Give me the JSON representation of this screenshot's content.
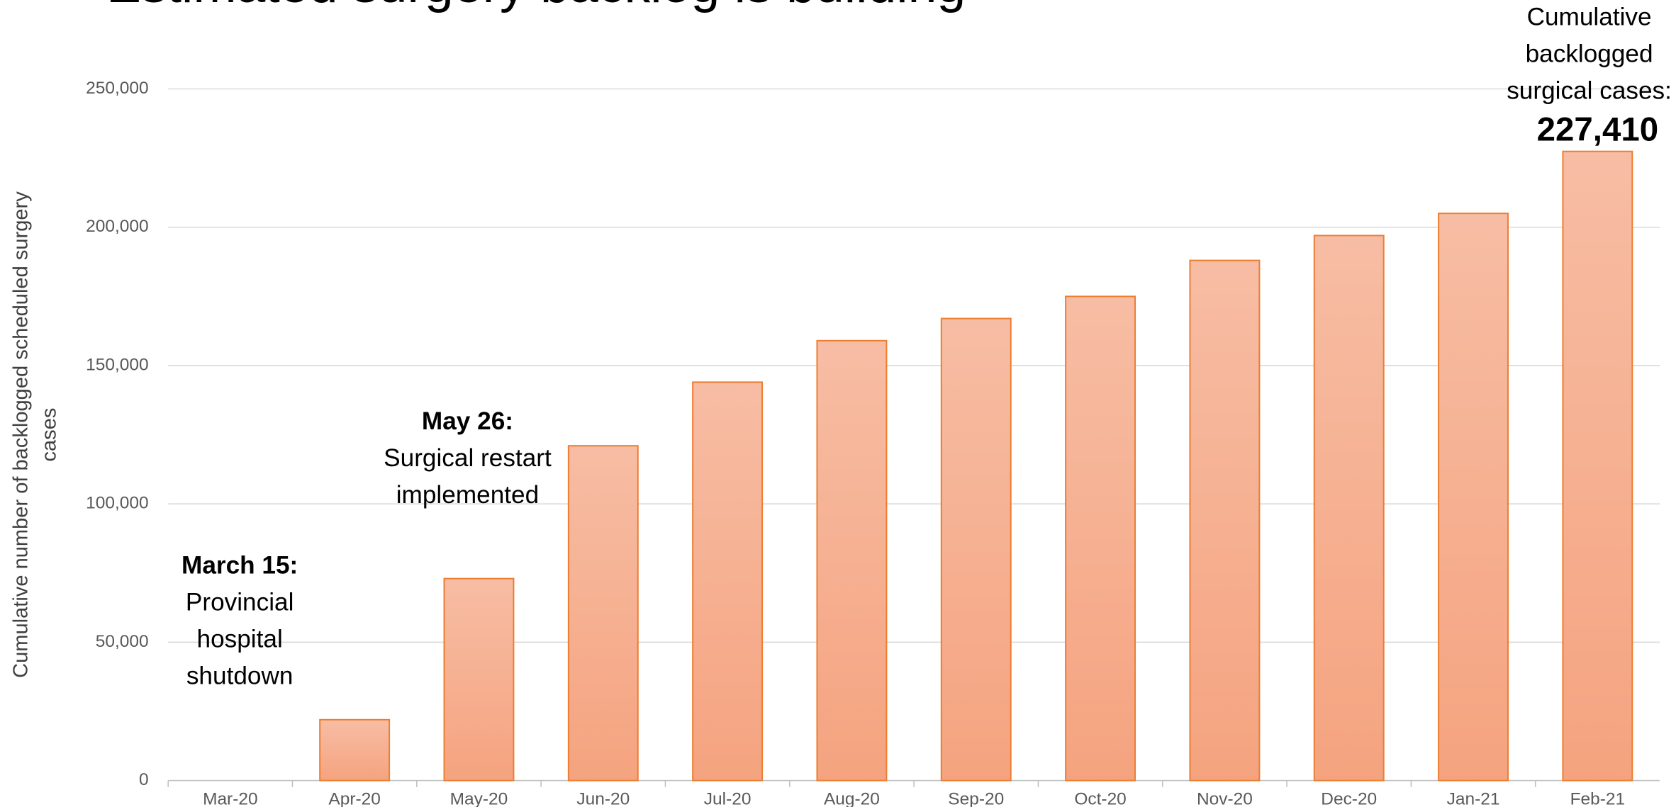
{
  "chart_data": {
    "type": "bar",
    "title": "Estimated surgery backlog is building",
    "ylabel": [
      "Cumulative number of backlogged scheduled surgery",
      "cases"
    ],
    "categories": [
      "Mar-20",
      "Apr-20",
      "May-20",
      "Jun-20",
      "Jul-20",
      "Aug-20",
      "Sep-20",
      "Oct-20",
      "Nov-20",
      "Dec-20",
      "Jan-21",
      "Feb-21"
    ],
    "values": [
      0,
      22000,
      73000,
      121000,
      144000,
      159000,
      167000,
      175000,
      188000,
      197000,
      205000,
      227410
    ],
    "value_labels": [
      null,
      null,
      null,
      null,
      null,
      null,
      null,
      null,
      null,
      null,
      null,
      "227,410"
    ],
    "color": "#f5a987",
    "edge_color": "#ed7d31",
    "ylim": [
      0,
      250000
    ],
    "yticks": [
      0,
      {
        "value": 50000,
        "label": "50,000"
      },
      {
        "value": 100000,
        "label": "100,000"
      },
      {
        "value": 150000,
        "label": "150,000"
      },
      {
        "value": 200000,
        "label": "200,000"
      },
      {
        "value": 250000,
        "label": "250,000"
      }
    ],
    "grid": true,
    "annotations": [
      {
        "title": "March 15:",
        "lines": [
          "Provincial",
          "hospital",
          "shutdown"
        ]
      },
      {
        "title": "May 26:",
        "lines": [
          "Surgical restart",
          "implemented"
        ]
      },
      {
        "lines": [
          "Cumulative",
          "backlogged",
          "surgical cases:"
        ]
      }
    ]
  }
}
